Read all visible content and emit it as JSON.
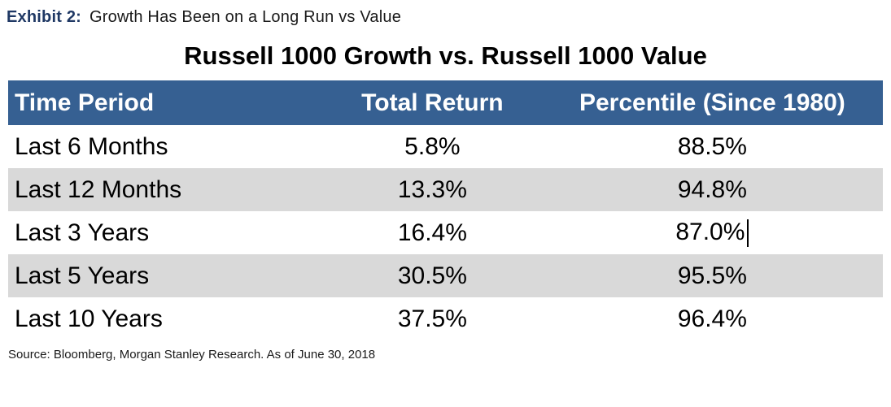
{
  "exhibit": {
    "label": "Exhibit 2:",
    "caption": "Growth Has Been on a Long Run vs Value"
  },
  "table": {
    "title": "Russell 1000 Growth vs. Russell 1000 Value",
    "columns": {
      "period": "Time Period",
      "total_return": "Total Return",
      "percentile": "Percentile (Since 1980)"
    },
    "rows": [
      {
        "period": "Last 6 Months",
        "total_return": "5.8%",
        "percentile": "88.5%"
      },
      {
        "period": "Last 12 Months",
        "total_return": "13.3%",
        "percentile": "94.8%"
      },
      {
        "period": "Last 3 Years",
        "total_return": "16.4%",
        "percentile": "87.0%"
      },
      {
        "period": "Last 5 Years",
        "total_return": "30.5%",
        "percentile": "95.5%"
      },
      {
        "period": "Last 10 Years",
        "total_return": "37.5%",
        "percentile": "96.4%"
      }
    ]
  },
  "source": "Source: Bloomberg, Morgan Stanley Research. As of June 30, 2018",
  "colors": {
    "header_bg": "#366092",
    "header_text": "#ffffff",
    "stripe": "#d9d9d9",
    "exhibit_label": "#1f3864"
  },
  "chart_data": {
    "type": "table",
    "title": "Russell 1000 Growth vs. Russell 1000 Value",
    "columns": [
      "Time Period",
      "Total Return",
      "Percentile (Since 1980)"
    ],
    "rows": [
      [
        "Last 6 Months",
        "5.8%",
        "88.5%"
      ],
      [
        "Last 12 Months",
        "13.3%",
        "94.8%"
      ],
      [
        "Last 3 Years",
        "16.4%",
        "87.0%"
      ],
      [
        "Last 5 Years",
        "30.5%",
        "95.5%"
      ],
      [
        "Last 10 Years",
        "37.5%",
        "96.4%"
      ]
    ],
    "total_return_pct": [
      5.8,
      13.3,
      16.4,
      30.5,
      37.5
    ],
    "percentile_since_1980_pct": [
      88.5,
      94.8,
      87.0,
      95.5,
      96.4
    ]
  }
}
